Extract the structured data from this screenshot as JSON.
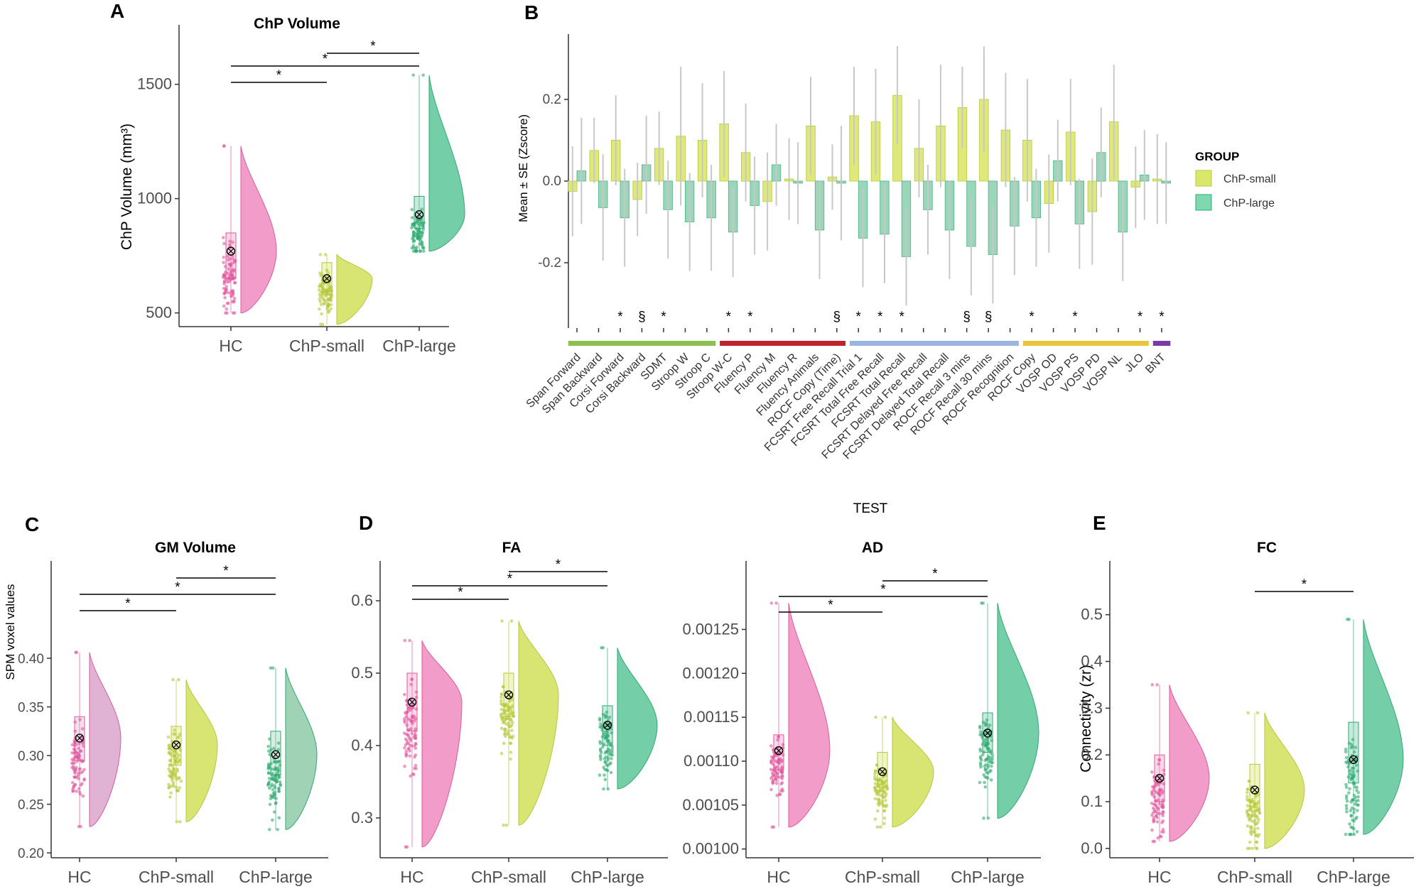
{
  "panel_labels": [
    "A",
    "B",
    "C",
    "D",
    "E"
  ],
  "legend": {
    "title": "GROUP",
    "items": [
      {
        "name": "ChP-small",
        "color": "#dbe76a"
      },
      {
        "name": "ChP-large",
        "color": "#7fd8b0"
      }
    ]
  },
  "colors": {
    "HC": "#f08cc0",
    "ChP-small": "#d2e15a",
    "ChP-large": "#5cc79a",
    "HC_dark": "#e0589c",
    "ChP-small_dark": "#b5c83a",
    "ChP-large_dark": "#2eaa72",
    "HC_muted": "#dba6cc",
    "ChP-large_muted": "#8fcaa8",
    "domain_green": "#8cc152",
    "domain_red": "#c0232b",
    "domain_blue": "#9ab5e0",
    "domain_yellow": "#e8c53a",
    "domain_purple": "#7a3aa8"
  },
  "chart_data": [
    {
      "id": "A",
      "type": "raincloud",
      "title": "ChP Volume",
      "ylabel": "ChP Volume (mm³)",
      "xlabel": "",
      "categories": [
        "HC",
        "ChP-small",
        "ChP-large"
      ],
      "ylim": [
        440,
        1760
      ],
      "yticks": [
        "500",
        "1000",
        "1500"
      ],
      "ytick_values": [
        500,
        1000,
        1500
      ],
      "groups": [
        {
          "name": "HC",
          "mean": 770,
          "median": 760,
          "q1": 650,
          "q3": 850,
          "min": 500,
          "max": 1230
        },
        {
          "name": "ChP-small",
          "mean": 650,
          "median": 650,
          "q1": 580,
          "q3": 720,
          "min": 450,
          "max": 755
        },
        {
          "name": "ChP-large",
          "mean": 930,
          "median": 920,
          "q1": 870,
          "q3": 1010,
          "min": 770,
          "max": 1540
        }
      ],
      "significance": [
        {
          "from": 0,
          "to": 1,
          "label": "*",
          "level": 1
        },
        {
          "from": 0,
          "to": 2,
          "label": "*",
          "level": 2
        },
        {
          "from": 1,
          "to": 2,
          "label": "*",
          "level": 3
        }
      ]
    },
    {
      "id": "B",
      "type": "bar",
      "ylabel": "Mean ± SE (Zscore)",
      "xlabel": "TEST",
      "ylim": [
        -0.36,
        0.36
      ],
      "yticks": [
        "-0.2",
        "0.0",
        "0.2"
      ],
      "ytick_values": [
        -0.2,
        0,
        0.2
      ],
      "categories": [
        "Span Forward",
        "Span Backward",
        "Corsi Forward",
        "Corsi Backward",
        "SDMT",
        "Stroop W",
        "Stroop C",
        "Stroop W-C",
        "Fluency P",
        "Fluency M",
        "Fluency R",
        "Fluency Animals",
        "ROCF Copy (Time)",
        "FCSRT Free Recall Trial 1",
        "FCSRT Total Free Recall",
        "FCSRT Total Recall",
        "FCSRT Delayed Free Recall",
        "FCSRT Delayed Total Recall",
        "ROCF Recall 3 mins",
        "ROCF Recall 30 mins",
        "ROCF Recognition",
        "ROCF Copy",
        "VOSP OD",
        "VOSP PS",
        "VOSP PD",
        "VOSP NL",
        "JLO",
        "BNT"
      ],
      "series": [
        {
          "name": "ChP-small",
          "values": [
            -0.025,
            0.075,
            0.1,
            -0.045,
            0.08,
            0.11,
            0.1,
            0.14,
            0.07,
            -0.05,
            0.005,
            0.135,
            0.01,
            0.16,
            0.145,
            0.21,
            0.08,
            0.135,
            0.18,
            0.2,
            0.125,
            0.1,
            -0.055,
            0.12,
            -0.075,
            0.145,
            -0.015,
            0.005
          ],
          "errors": [
            0.11,
            0.08,
            0.11,
            0.09,
            0.09,
            0.17,
            0.14,
            0.13,
            0.12,
            0.12,
            0.1,
            0.12,
            0.08,
            0.12,
            0.13,
            0.12,
            0.12,
            0.15,
            0.1,
            0.13,
            0.14,
            0.15,
            0.12,
            0.13,
            0.13,
            0.14,
            0.1,
            0.11
          ]
        },
        {
          "name": "ChP-large",
          "values": [
            0.025,
            -0.065,
            -0.09,
            0.04,
            -0.07,
            -0.1,
            -0.09,
            -0.125,
            -0.06,
            0.04,
            -0.005,
            -0.12,
            -0.005,
            -0.14,
            -0.13,
            -0.185,
            -0.07,
            -0.12,
            -0.16,
            -0.18,
            -0.11,
            -0.09,
            0.05,
            -0.105,
            0.07,
            -0.125,
            0.015,
            -0.005
          ],
          "errors": [
            0.13,
            0.13,
            0.12,
            0.12,
            0.12,
            0.12,
            0.13,
            0.11,
            0.12,
            0.1,
            0.1,
            0.12,
            0.14,
            0.12,
            0.12,
            0.12,
            0.11,
            0.12,
            0.12,
            0.12,
            0.12,
            0.12,
            0.1,
            0.11,
            0.11,
            0.12,
            0.11,
            0.1
          ]
        }
      ],
      "significance_marks": [
        "",
        "",
        "*",
        "§",
        "*",
        "",
        "",
        "*",
        "*",
        "",
        "",
        "",
        "§",
        "*",
        "*",
        "*",
        "",
        "",
        "§",
        "§",
        "",
        "*",
        "",
        "*",
        "",
        "",
        "*",
        "*"
      ],
      "domains": [
        {
          "color": "#8cc152",
          "start": 0,
          "end": 6
        },
        {
          "color": "#c0232b",
          "start": 7,
          "end": 12
        },
        {
          "color": "#9ab5e0",
          "start": 13,
          "end": 20
        },
        {
          "color": "#e8c53a",
          "start": 21,
          "end": 26
        },
        {
          "color": "#7a3aa8",
          "start": 27,
          "end": 27
        }
      ]
    },
    {
      "id": "C",
      "type": "raincloud",
      "title": "GM Volume",
      "ylabel": "SPM voxel values",
      "categories": [
        "HC",
        "ChP-small",
        "ChP-large"
      ],
      "ylim": [
        0.195,
        0.5
      ],
      "yticks": [
        "0.20",
        "0.25",
        "0.30",
        "0.35",
        "0.40"
      ],
      "ytick_values": [
        0.2,
        0.25,
        0.3,
        0.35,
        0.4
      ],
      "groups": [
        {
          "name": "HC",
          "mean": 0.318,
          "median": 0.318,
          "q1": 0.295,
          "q3": 0.34,
          "min": 0.227,
          "max": 0.406
        },
        {
          "name": "ChP-small",
          "mean": 0.311,
          "median": 0.311,
          "q1": 0.29,
          "q3": 0.33,
          "min": 0.232,
          "max": 0.378
        },
        {
          "name": "ChP-large",
          "mean": 0.301,
          "median": 0.301,
          "q1": 0.28,
          "q3": 0.325,
          "min": 0.224,
          "max": 0.39
        }
      ],
      "significance": [
        {
          "from": 0,
          "to": 1,
          "label": "*",
          "level": 1
        },
        {
          "from": 0,
          "to": 2,
          "label": "*",
          "level": 2
        },
        {
          "from": 1,
          "to": 2,
          "label": "*",
          "level": 3
        }
      ]
    },
    {
      "id": "D1",
      "type": "raincloud",
      "title": "FA",
      "categories": [
        "HC",
        "ChP-small",
        "ChP-large"
      ],
      "ylim": [
        0.245,
        0.655
      ],
      "yticks": [
        "0.3",
        "0.4",
        "0.5",
        "0.6"
      ],
      "ytick_values": [
        0.3,
        0.4,
        0.5,
        0.6
      ],
      "groups": [
        {
          "name": "HC",
          "mean": 0.46,
          "median": 0.46,
          "q1": 0.42,
          "q3": 0.5,
          "min": 0.26,
          "max": 0.545
        },
        {
          "name": "ChP-small",
          "mean": 0.47,
          "median": 0.47,
          "q1": 0.44,
          "q3": 0.5,
          "min": 0.29,
          "max": 0.572
        },
        {
          "name": "ChP-large",
          "mean": 0.428,
          "median": 0.428,
          "q1": 0.4,
          "q3": 0.455,
          "min": 0.34,
          "max": 0.535
        }
      ],
      "significance": [
        {
          "from": 0,
          "to": 1,
          "label": "*",
          "level": 1
        },
        {
          "from": 0,
          "to": 2,
          "label": "*",
          "level": 2
        },
        {
          "from": 1,
          "to": 2,
          "label": "*",
          "level": 3
        }
      ]
    },
    {
      "id": "D2",
      "type": "raincloud",
      "title": "AD",
      "categories": [
        "HC",
        "ChP-small",
        "ChP-large"
      ],
      "ylim": [
        0.00099,
        0.001328
      ],
      "yticks": [
        "0.00100",
        "0.00105",
        "0.00110",
        "0.00115",
        "0.00120",
        "0.00125"
      ],
      "ytick_values": [
        0.001,
        0.00105,
        0.0011,
        0.00115,
        0.0012,
        0.00125
      ],
      "groups": [
        {
          "name": "HC",
          "mean": 0.001112,
          "median": 0.001112,
          "q1": 0.00109,
          "q3": 0.00113,
          "min": 0.001025,
          "max": 0.00128
        },
        {
          "name": "ChP-small",
          "mean": 0.001088,
          "median": 0.001088,
          "q1": 0.00107,
          "q3": 0.00111,
          "min": 0.001025,
          "max": 0.00115
        },
        {
          "name": "ChP-large",
          "mean": 0.001132,
          "median": 0.001132,
          "q1": 0.00111,
          "q3": 0.001155,
          "min": 0.001035,
          "max": 0.00128
        }
      ],
      "significance": [
        {
          "from": 0,
          "to": 1,
          "label": "*",
          "level": 1
        },
        {
          "from": 0,
          "to": 2,
          "label": "*",
          "level": 2
        },
        {
          "from": 1,
          "to": 2,
          "label": "*",
          "level": 3
        }
      ]
    },
    {
      "id": "E",
      "type": "raincloud",
      "title": "FC",
      "ylabel": "Connectivity (zr)",
      "categories": [
        "HC",
        "ChP-small",
        "ChP-large"
      ],
      "ylim": [
        -0.02,
        0.615
      ],
      "yticks": [
        "0.0",
        "0.1",
        "0.2",
        "0.3",
        "0.4",
        "0.5"
      ],
      "ytick_values": [
        0,
        0.1,
        0.2,
        0.3,
        0.4,
        0.5
      ],
      "groups": [
        {
          "name": "HC",
          "mean": 0.15,
          "median": 0.15,
          "q1": 0.1,
          "q3": 0.2,
          "min": 0.015,
          "max": 0.35
        },
        {
          "name": "ChP-small",
          "mean": 0.125,
          "median": 0.125,
          "q1": 0.08,
          "q3": 0.18,
          "min": 0.0,
          "max": 0.29
        },
        {
          "name": "ChP-large",
          "mean": 0.19,
          "median": 0.19,
          "q1": 0.14,
          "q3": 0.27,
          "min": 0.03,
          "max": 0.49
        }
      ],
      "significance": [
        {
          "from": 1,
          "to": 2,
          "label": "*",
          "level": 1
        }
      ]
    }
  ]
}
